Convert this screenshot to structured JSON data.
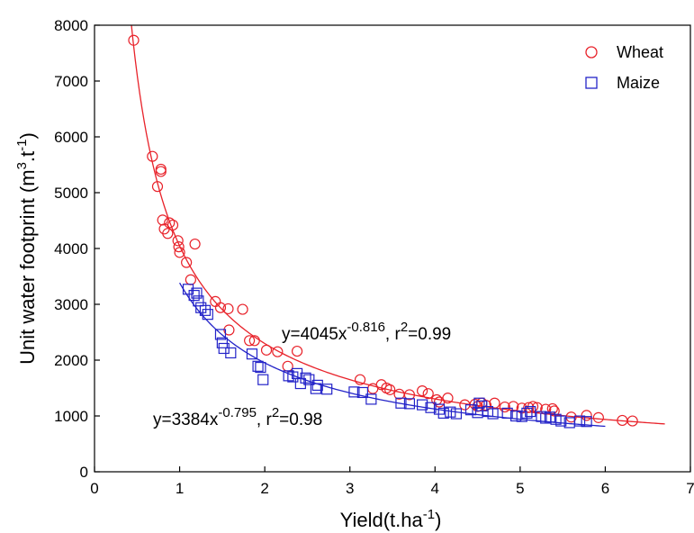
{
  "chart_data": {
    "type": "scatter",
    "xlabel": "Yield(t.ha",
    "xlabel_sup": "-1",
    "xlabel_close": ")",
    "ylabel": "Unit water footprint (m",
    "ylabel_sup1": "3",
    "ylabel_mid": ".t",
    "ylabel_sup2": "-1",
    "ylabel_close": ")",
    "xlim": [
      0,
      7
    ],
    "ylim": [
      0,
      8000
    ],
    "xticks": [
      0,
      1,
      2,
      3,
      4,
      5,
      6,
      7
    ],
    "yticks": [
      0,
      1000,
      2000,
      3000,
      4000,
      5000,
      6000,
      7000,
      8000
    ],
    "grid": false,
    "legend_position": "top-right",
    "series": [
      {
        "name": "Wheat",
        "marker": "circle",
        "color": "#e8222a",
        "fit": {
          "a": 4045,
          "b": -0.816,
          "x_range": [
            0.4,
            6.7
          ]
        },
        "equation": {
          "prefix": "y=4045x",
          "exp": "-0.816",
          "mid": ", r",
          "r_exp": "2",
          "suffix": "=0.99"
        },
        "points": [
          [
            0.46,
            7730
          ],
          [
            0.68,
            5650
          ],
          [
            0.74,
            5110
          ],
          [
            0.78,
            5420
          ],
          [
            0.78,
            5380
          ],
          [
            0.8,
            4510
          ],
          [
            0.82,
            4350
          ],
          [
            0.86,
            4270
          ],
          [
            0.88,
            4460
          ],
          [
            0.92,
            4420
          ],
          [
            0.98,
            4140
          ],
          [
            0.99,
            4030
          ],
          [
            1.0,
            3930
          ],
          [
            1.08,
            3750
          ],
          [
            1.18,
            4080
          ],
          [
            1.13,
            3440
          ],
          [
            1.42,
            3050
          ],
          [
            1.48,
            2940
          ],
          [
            1.57,
            2920
          ],
          [
            1.58,
            2540
          ],
          [
            1.74,
            2910
          ],
          [
            1.82,
            2350
          ],
          [
            1.88,
            2350
          ],
          [
            2.02,
            2180
          ],
          [
            2.15,
            2150
          ],
          [
            2.27,
            1890
          ],
          [
            2.38,
            2160
          ],
          [
            3.12,
            1650
          ],
          [
            3.27,
            1490
          ],
          [
            3.37,
            1560
          ],
          [
            3.43,
            1500
          ],
          [
            3.47,
            1470
          ],
          [
            3.58,
            1390
          ],
          [
            3.7,
            1380
          ],
          [
            3.85,
            1450
          ],
          [
            3.92,
            1400
          ],
          [
            4.02,
            1290
          ],
          [
            4.05,
            1250
          ],
          [
            4.15,
            1320
          ],
          [
            4.35,
            1200
          ],
          [
            4.47,
            1210
          ],
          [
            4.5,
            1170
          ],
          [
            4.55,
            1230
          ],
          [
            4.6,
            1190
          ],
          [
            4.7,
            1230
          ],
          [
            4.82,
            1160
          ],
          [
            4.92,
            1170
          ],
          [
            5.02,
            1140
          ],
          [
            5.1,
            1150
          ],
          [
            5.15,
            1170
          ],
          [
            5.2,
            1150
          ],
          [
            5.3,
            1120
          ],
          [
            5.38,
            1130
          ],
          [
            5.4,
            1090
          ],
          [
            5.6,
            980
          ],
          [
            5.78,
            1010
          ],
          [
            5.92,
            970
          ],
          [
            6.2,
            920
          ],
          [
            6.32,
            910
          ]
        ]
      },
      {
        "name": "Maize",
        "marker": "square",
        "color": "#2323c8",
        "fit": {
          "a": 3384,
          "b": -0.795,
          "x_range": [
            1.0,
            6.0
          ]
        },
        "equation": {
          "prefix": "y=3384x",
          "exp": "-0.795",
          "mid": ", r",
          "r_exp": "2",
          "suffix": "=0.98"
        },
        "points": [
          [
            1.1,
            3270
          ],
          [
            1.17,
            3160
          ],
          [
            1.2,
            3200
          ],
          [
            1.22,
            3060
          ],
          [
            1.25,
            2940
          ],
          [
            1.3,
            2890
          ],
          [
            1.33,
            2820
          ],
          [
            1.48,
            2460
          ],
          [
            1.5,
            2310
          ],
          [
            1.52,
            2210
          ],
          [
            1.6,
            2130
          ],
          [
            1.85,
            2110
          ],
          [
            1.92,
            1890
          ],
          [
            1.95,
            1870
          ],
          [
            1.98,
            1650
          ],
          [
            2.28,
            1720
          ],
          [
            2.33,
            1700
          ],
          [
            2.38,
            1760
          ],
          [
            2.42,
            1580
          ],
          [
            2.48,
            1680
          ],
          [
            2.52,
            1650
          ],
          [
            2.6,
            1490
          ],
          [
            2.62,
            1550
          ],
          [
            2.73,
            1480
          ],
          [
            3.05,
            1430
          ],
          [
            3.15,
            1420
          ],
          [
            3.25,
            1300
          ],
          [
            3.6,
            1230
          ],
          [
            3.7,
            1220
          ],
          [
            3.85,
            1200
          ],
          [
            3.95,
            1150
          ],
          [
            4.05,
            1120
          ],
          [
            4.1,
            1050
          ],
          [
            4.18,
            1070
          ],
          [
            4.25,
            1040
          ],
          [
            4.42,
            1110
          ],
          [
            4.5,
            1060
          ],
          [
            4.52,
            1230
          ],
          [
            4.55,
            1180
          ],
          [
            4.62,
            1080
          ],
          [
            4.68,
            1040
          ],
          [
            4.85,
            1050
          ],
          [
            4.95,
            1000
          ],
          [
            5.02,
            990
          ],
          [
            5.08,
            1050
          ],
          [
            5.12,
            1080
          ],
          [
            5.25,
            990
          ],
          [
            5.3,
            960
          ],
          [
            5.35,
            980
          ],
          [
            5.42,
            940
          ],
          [
            5.48,
            910
          ],
          [
            5.58,
            880
          ],
          [
            5.7,
            910
          ],
          [
            5.78,
            900
          ]
        ]
      }
    ]
  }
}
